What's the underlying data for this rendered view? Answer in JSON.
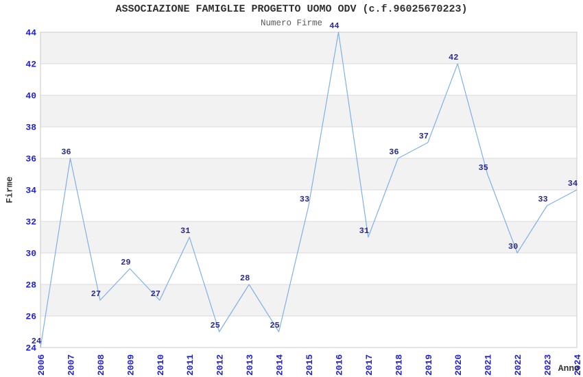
{
  "chart_data": {
    "type": "line",
    "title": "ASSOCIAZIONE FAMIGLIE PROGETTO UOMO ODV (c.f.96025670223)",
    "subtitle": "Numero Firme",
    "xlabel": "Anno",
    "ylabel": "Firme",
    "x": [
      2006,
      2007,
      2008,
      2009,
      2010,
      2011,
      2012,
      2013,
      2014,
      2015,
      2016,
      2017,
      2018,
      2019,
      2020,
      2021,
      2022,
      2023,
      2024
    ],
    "values": [
      24,
      36,
      27,
      29,
      27,
      31,
      25,
      28,
      25,
      33,
      44,
      31,
      36,
      37,
      42,
      35,
      30,
      33,
      34
    ],
    "ylim": [
      24,
      44
    ],
    "ytick_step": 2,
    "yticks": [
      24,
      26,
      28,
      30,
      32,
      34,
      36,
      38,
      40,
      42,
      44
    ],
    "grid": "horizontal gridlines every 2 units with alternating shaded bands",
    "legend": "none",
    "point_labels_visible": true,
    "style": {
      "line": "#7fb0e6",
      "tick_label": "#2222cc",
      "point_label": "#2d2d87",
      "band": "#f2f2f2",
      "band_alt": "#ffffff",
      "gridline": "#d9d9d9",
      "border": "#c9c9c9",
      "title": "#303030",
      "subtitle": "#595959",
      "axis_title": "#333333"
    }
  }
}
